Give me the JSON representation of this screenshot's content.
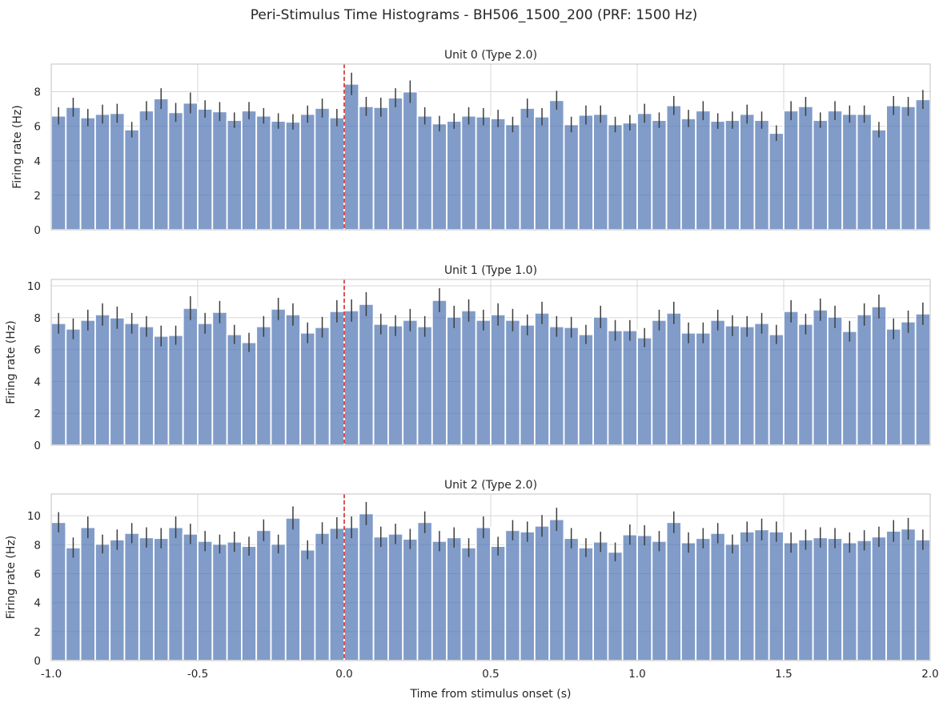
{
  "figure": {
    "suptitle": "Peri-Stimulus Time Histograms - BH506_1500_200 (PRF: 1500 Hz)",
    "xlabel": "Time from stimulus onset (s)"
  },
  "colors": {
    "bar": "#4c72b0",
    "errorbar": "#3d3d3d",
    "stimulus_line": "#d62728",
    "grid": "#d7d7d7"
  },
  "chart_data": [
    {
      "type": "bar",
      "title": "Unit 0 (Type 2.0)",
      "ylabel": "Firing rate (Hz)",
      "xlim": [
        -1.0,
        2.0
      ],
      "ylim": [
        0,
        9.6
      ],
      "xticks": [
        "-1.0",
        "-0.5",
        "0.0",
        "0.5",
        "1.0",
        "1.5",
        "2.0"
      ],
      "yticks": [
        "0",
        "2",
        "4",
        "6",
        "8"
      ],
      "bin_width": 0.05,
      "stimulus_onset": 0.0,
      "grid": true,
      "values": [
        6.6,
        7.1,
        6.5,
        6.7,
        6.75,
        5.8,
        6.9,
        7.6,
        6.8,
        7.35,
        7.0,
        6.85,
        6.35,
        6.9,
        6.6,
        6.3,
        6.25,
        6.7,
        7.05,
        6.5,
        8.45,
        7.15,
        7.1,
        7.65,
        8.0,
        6.6,
        6.15,
        6.3,
        6.6,
        6.55,
        6.45,
        6.1,
        7.05,
        6.55,
        7.5,
        6.1,
        6.65,
        6.7,
        6.1,
        6.2,
        6.75,
        6.35,
        7.2,
        6.45,
        6.9,
        6.3,
        6.35,
        6.7,
        6.35,
        5.6,
        6.9,
        7.15,
        6.35,
        6.9,
        6.7,
        6.7,
        5.8,
        7.2,
        7.15,
        7.55
      ],
      "errors": [
        0.5,
        0.55,
        0.5,
        0.55,
        0.55,
        0.45,
        0.55,
        0.6,
        0.55,
        0.6,
        0.5,
        0.55,
        0.45,
        0.5,
        0.45,
        0.45,
        0.45,
        0.5,
        0.55,
        0.5,
        0.65,
        0.55,
        0.55,
        0.55,
        0.65,
        0.5,
        0.45,
        0.45,
        0.5,
        0.5,
        0.5,
        0.45,
        0.55,
        0.5,
        0.55,
        0.45,
        0.55,
        0.5,
        0.45,
        0.45,
        0.55,
        0.45,
        0.55,
        0.5,
        0.55,
        0.45,
        0.5,
        0.55,
        0.5,
        0.45,
        0.55,
        0.55,
        0.45,
        0.55,
        0.5,
        0.5,
        0.45,
        0.55,
        0.55,
        0.55
      ]
    },
    {
      "type": "bar",
      "title": "Unit 1 (Type 1.0)",
      "ylabel": "Firing rate (Hz)",
      "xlim": [
        -1.0,
        2.0
      ],
      "ylim": [
        0,
        10.4
      ],
      "xticks": [
        "-1.0",
        "-0.5",
        "0.0",
        "0.5",
        "1.0",
        "1.5",
        "2.0"
      ],
      "yticks": [
        "0",
        "2",
        "4",
        "6",
        "8",
        "10"
      ],
      "bin_width": 0.05,
      "stimulus_onset": 0.0,
      "grid": true,
      "values": [
        7.65,
        7.3,
        7.85,
        8.2,
        8.0,
        7.65,
        7.45,
        6.85,
        6.9,
        8.6,
        7.65,
        8.35,
        6.95,
        6.45,
        7.45,
        8.55,
        8.2,
        7.05,
        7.4,
        8.4,
        8.45,
        8.85,
        7.6,
        7.5,
        7.85,
        7.45,
        9.1,
        8.05,
        8.45,
        7.85,
        8.2,
        7.85,
        7.55,
        8.3,
        7.45,
        7.4,
        6.95,
        8.05,
        7.2,
        7.2,
        6.75,
        7.85,
        8.3,
        7.05,
        7.05,
        7.85,
        7.5,
        7.45,
        7.65,
        6.95,
        8.4,
        7.6,
        8.5,
        8.05,
        7.15,
        8.2,
        8.7,
        7.3,
        7.75,
        8.25
      ],
      "errors": [
        0.65,
        0.65,
        0.65,
        0.7,
        0.7,
        0.65,
        0.65,
        0.65,
        0.6,
        0.75,
        0.65,
        0.7,
        0.6,
        0.6,
        0.65,
        0.7,
        0.7,
        0.65,
        0.65,
        0.7,
        0.7,
        0.75,
        0.65,
        0.65,
        0.7,
        0.65,
        0.75,
        0.7,
        0.7,
        0.65,
        0.7,
        0.7,
        0.65,
        0.7,
        0.65,
        0.65,
        0.6,
        0.7,
        0.65,
        0.65,
        0.6,
        0.65,
        0.7,
        0.65,
        0.65,
        0.65,
        0.65,
        0.65,
        0.65,
        0.6,
        0.7,
        0.65,
        0.7,
        0.7,
        0.65,
        0.7,
        0.75,
        0.65,
        0.7,
        0.7
      ]
    },
    {
      "type": "bar",
      "title": "Unit 2 (Type 2.0)",
      "ylabel": "Firing rate (Hz)",
      "xlim": [
        -1.0,
        2.0
      ],
      "ylim": [
        0,
        11.5
      ],
      "xticks": [
        "-1.0",
        "-0.5",
        "0.0",
        "0.5",
        "1.0",
        "1.5",
        "2.0"
      ],
      "yticks": [
        "0",
        "2",
        "4",
        "6",
        "8",
        "10"
      ],
      "bin_width": 0.05,
      "stimulus_onset": 0.0,
      "grid": true,
      "values": [
        9.55,
        7.8,
        9.2,
        8.05,
        8.35,
        8.8,
        8.5,
        8.45,
        9.2,
        8.75,
        8.25,
        8.05,
        8.2,
        7.9,
        9.0,
        8.05,
        9.85,
        7.65,
        8.8,
        9.15,
        9.2,
        10.15,
        8.55,
        8.75,
        8.4,
        9.55,
        8.25,
        8.5,
        7.8,
        9.2,
        7.9,
        9.0,
        8.9,
        9.3,
        9.75,
        8.45,
        7.8,
        8.2,
        7.5,
        8.7,
        8.65,
        8.25,
        9.55,
        8.15,
        8.45,
        8.8,
        8.05,
        8.9,
        9.05,
        8.9,
        8.15,
        8.35,
        8.5,
        8.45,
        8.15,
        8.3,
        8.55,
        8.95,
        9.1,
        8.35
      ],
      "errors": [
        0.7,
        0.7,
        0.75,
        0.65,
        0.7,
        0.7,
        0.7,
        0.7,
        0.75,
        0.7,
        0.7,
        0.65,
        0.7,
        0.65,
        0.75,
        0.65,
        0.8,
        0.65,
        0.75,
        0.75,
        0.75,
        0.8,
        0.7,
        0.7,
        0.7,
        0.75,
        0.7,
        0.7,
        0.65,
        0.75,
        0.65,
        0.7,
        0.7,
        0.75,
        0.8,
        0.7,
        0.65,
        0.7,
        0.65,
        0.7,
        0.7,
        0.7,
        0.75,
        0.7,
        0.7,
        0.7,
        0.65,
        0.7,
        0.75,
        0.7,
        0.7,
        0.7,
        0.7,
        0.7,
        0.7,
        0.7,
        0.7,
        0.75,
        0.75,
        0.7
      ]
    }
  ]
}
